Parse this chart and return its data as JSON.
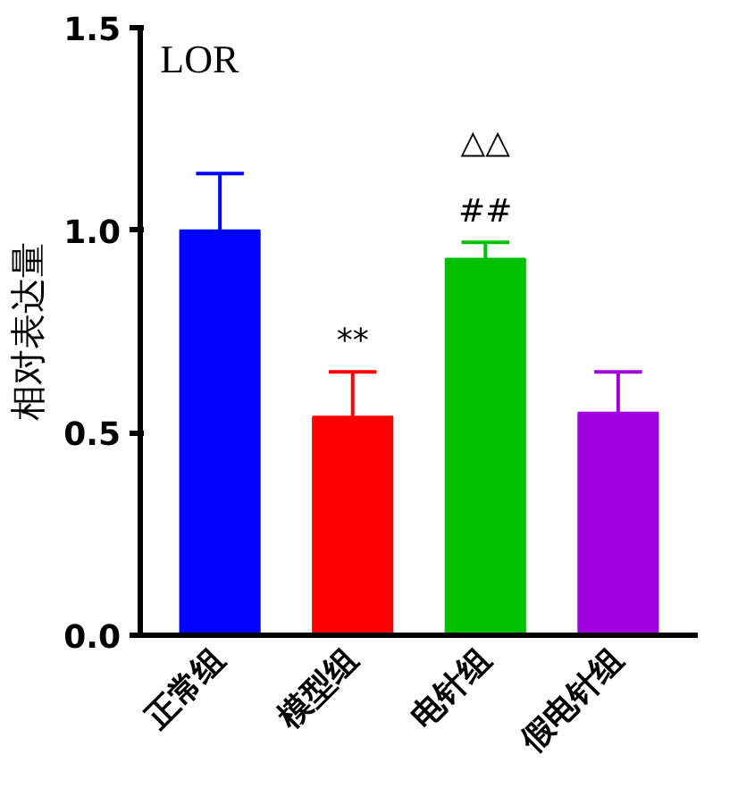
{
  "chart_data": {
    "type": "bar",
    "title": "LOR",
    "ylabel": "相对表达量",
    "categories": [
      "正常组",
      "模型组",
      "电针组",
      "假电针组"
    ],
    "values": [
      1.0,
      0.54,
      0.93,
      0.55
    ],
    "colors": [
      "#0000ff",
      "#ff0000",
      "#00c000",
      "#a000e0"
    ],
    "errors": [
      [
        1.0,
        1.14
      ],
      [
        0.54,
        0.65
      ],
      [
        0.93,
        0.97
      ],
      [
        0.55,
        0.65
      ]
    ],
    "ylim": [
      0,
      1.5
    ],
    "yticks": [
      {
        "value": 0,
        "label": "0.0"
      },
      {
        "value": 0.5,
        "label": "0.5"
      },
      {
        "value": 1.0,
        "label": "1.0"
      },
      {
        "value": 1.5,
        "label": "1.5"
      }
    ],
    "annotations": [
      "**",
      "##",
      "△△"
    ],
    "grid": false
  }
}
